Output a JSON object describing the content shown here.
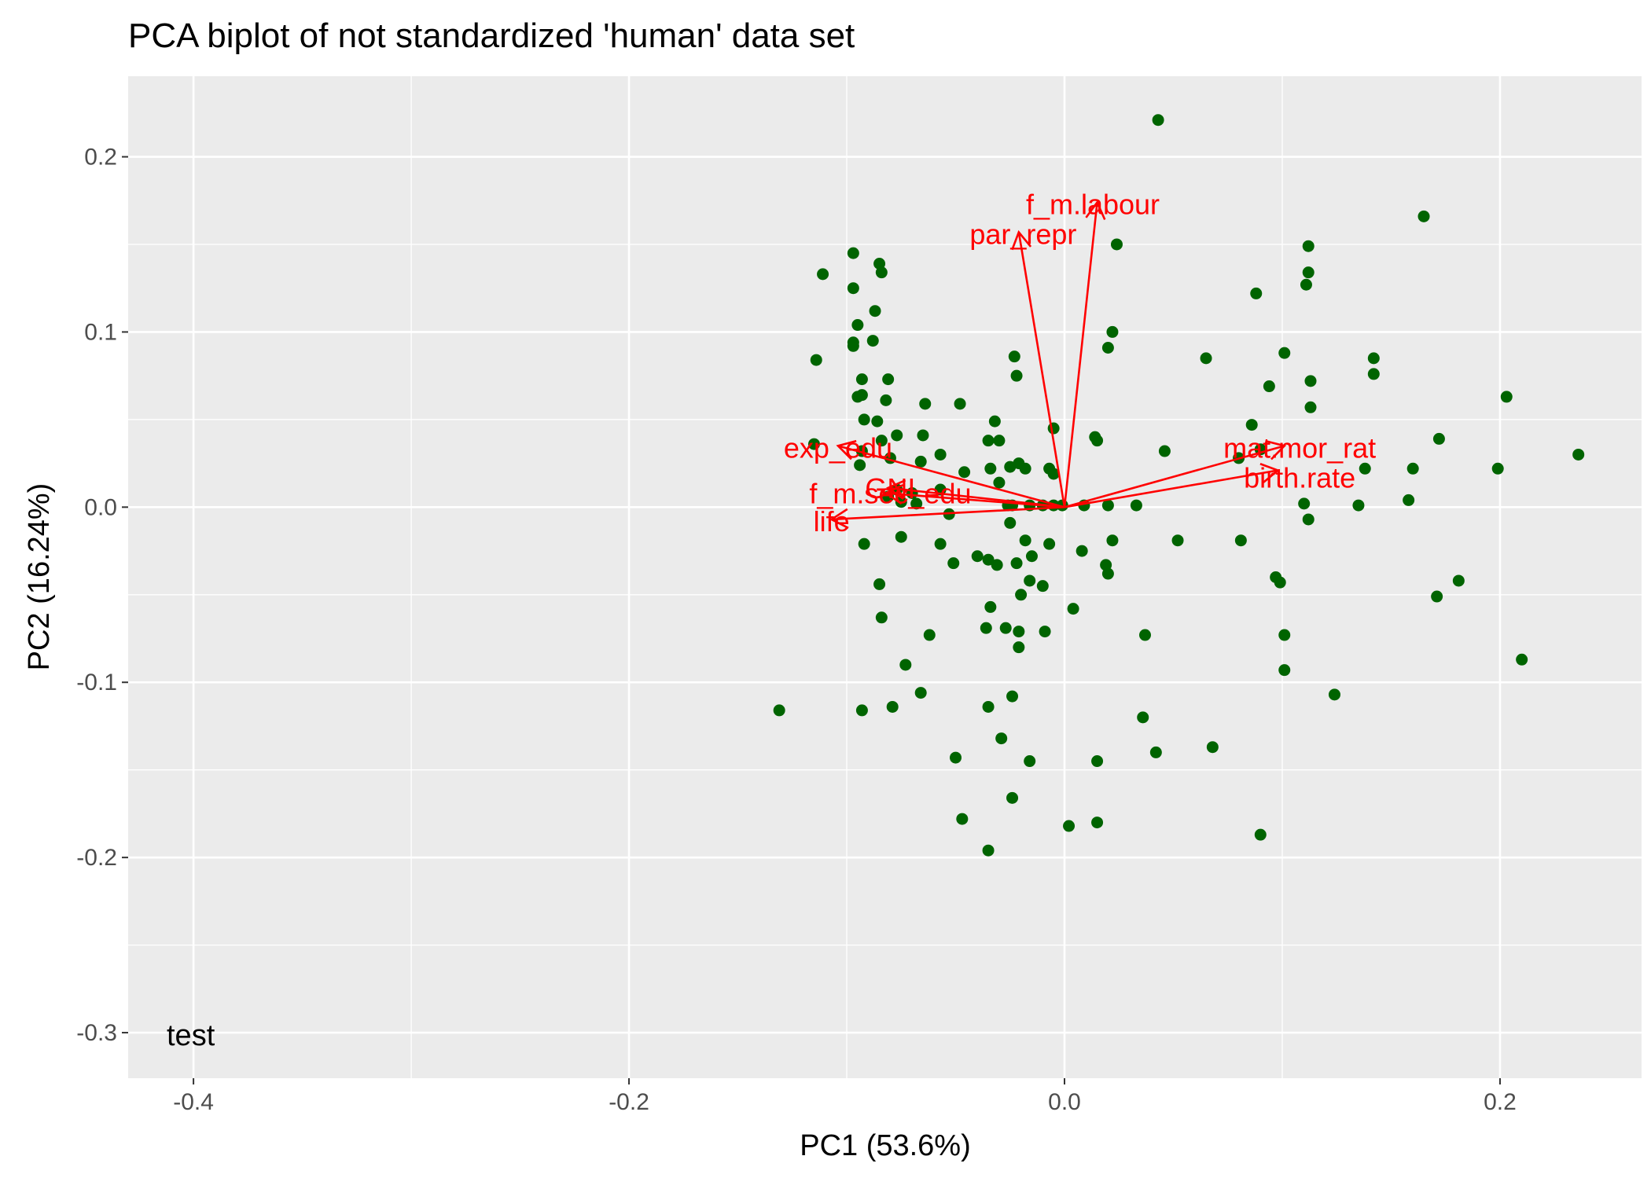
{
  "chart_data": {
    "type": "scatter",
    "title": "PCA biplot of not standardized 'human' data set",
    "xlabel": "PC1 (53.6%)",
    "ylabel": "PC2 (16.24%)",
    "xlim": [
      -0.43,
      0.265
    ],
    "ylim": [
      -0.326,
      0.246
    ],
    "x_ticks": [
      -0.4,
      -0.2,
      0.0,
      0.2
    ],
    "x_tick_labels": [
      "-0.4",
      "-0.2",
      "0.0",
      "0.2"
    ],
    "y_ticks": [
      -0.3,
      -0.2,
      -0.1,
      0.0,
      0.1,
      0.2
    ],
    "y_tick_labels": [
      "-0.3",
      "-0.2",
      "-0.1",
      "0.0",
      "0.1",
      "0.2"
    ],
    "grid": true,
    "point_color": "#006400",
    "arrow_color": "#ff0000",
    "panel_color": "#ebebeb",
    "annotation": "test",
    "points": [
      [
        0.043,
        0.221
      ],
      [
        0.165,
        0.166
      ],
      [
        0.112,
        0.149
      ],
      [
        0.024,
        0.15
      ],
      [
        -0.097,
        0.145
      ],
      [
        -0.085,
        0.139
      ],
      [
        -0.111,
        0.133
      ],
      [
        -0.084,
        0.134
      ],
      [
        0.112,
        0.134
      ],
      [
        0.111,
        0.127
      ],
      [
        -0.097,
        0.125
      ],
      [
        0.088,
        0.122
      ],
      [
        -0.087,
        0.112
      ],
      [
        -0.095,
        0.104
      ],
      [
        0.022,
        0.1
      ],
      [
        -0.097,
        0.094
      ],
      [
        -0.088,
        0.095
      ],
      [
        -0.097,
        0.092
      ],
      [
        0.02,
        0.091
      ],
      [
        0.101,
        0.088
      ],
      [
        -0.023,
        0.086
      ],
      [
        0.065,
        0.085
      ],
      [
        -0.114,
        0.084
      ],
      [
        0.142,
        0.085
      ],
      [
        0.142,
        0.076
      ],
      [
        -0.093,
        0.073
      ],
      [
        -0.081,
        0.073
      ],
      [
        -0.022,
        0.075
      ],
      [
        0.113,
        0.072
      ],
      [
        0.094,
        0.069
      ],
      [
        -0.093,
        0.064
      ],
      [
        -0.095,
        0.063
      ],
      [
        -0.048,
        0.059
      ],
      [
        -0.082,
        0.061
      ],
      [
        -0.064,
        0.059
      ],
      [
        0.113,
        0.057
      ],
      [
        0.203,
        0.063
      ],
      [
        -0.092,
        0.05
      ],
      [
        -0.086,
        0.049
      ],
      [
        -0.032,
        0.049
      ],
      [
        0.086,
        0.047
      ],
      [
        -0.005,
        0.045
      ],
      [
        -0.077,
        0.041
      ],
      [
        -0.065,
        0.041
      ],
      [
        -0.035,
        0.038
      ],
      [
        -0.03,
        0.038
      ],
      [
        0.014,
        0.04
      ],
      [
        0.015,
        0.038
      ],
      [
        0.172,
        0.039
      ],
      [
        -0.084,
        0.038
      ],
      [
        -0.093,
        0.032
      ],
      [
        -0.115,
        0.036
      ],
      [
        -0.057,
        0.03
      ],
      [
        0.046,
        0.032
      ],
      [
        0.09,
        0.033
      ],
      [
        0.08,
        0.028
      ],
      [
        -0.08,
        0.028
      ],
      [
        -0.094,
        0.024
      ],
      [
        -0.066,
        0.026
      ],
      [
        -0.046,
        0.02
      ],
      [
        -0.034,
        0.022
      ],
      [
        -0.025,
        0.023
      ],
      [
        -0.021,
        0.025
      ],
      [
        -0.018,
        0.022
      ],
      [
        -0.007,
        0.022
      ],
      [
        -0.005,
        0.019
      ],
      [
        0.16,
        0.022
      ],
      [
        0.199,
        0.022
      ],
      [
        0.236,
        0.03
      ],
      [
        0.138,
        0.022
      ],
      [
        -0.03,
        0.014
      ],
      [
        -0.057,
        0.01
      ],
      [
        -0.077,
        0.01
      ],
      [
        -0.081,
        0.006
      ],
      [
        -0.07,
        0.008
      ],
      [
        -0.075,
        0.003
      ],
      [
        -0.068,
        0.002
      ],
      [
        -0.026,
        0.001
      ],
      [
        -0.024,
        0.001
      ],
      [
        -0.016,
        0.001
      ],
      [
        -0.01,
        0.001
      ],
      [
        -0.005,
        0.001
      ],
      [
        -0.001,
        0.001
      ],
      [
        0.009,
        0.001
      ],
      [
        0.02,
        0.001
      ],
      [
        0.033,
        0.001
      ],
      [
        0.11,
        0.002
      ],
      [
        0.135,
        0.001
      ],
      [
        0.158,
        0.004
      ],
      [
        -0.053,
        -0.004
      ],
      [
        -0.025,
        -0.009
      ],
      [
        -0.075,
        -0.017
      ],
      [
        -0.092,
        -0.021
      ],
      [
        -0.057,
        -0.021
      ],
      [
        -0.018,
        -0.019
      ],
      [
        -0.007,
        -0.021
      ],
      [
        0.022,
        -0.019
      ],
      [
        0.052,
        -0.019
      ],
      [
        0.081,
        -0.019
      ],
      [
        0.112,
        -0.007
      ],
      [
        -0.04,
        -0.028
      ],
      [
        -0.035,
        -0.03
      ],
      [
        -0.051,
        -0.032
      ],
      [
        -0.031,
        -0.033
      ],
      [
        -0.022,
        -0.032
      ],
      [
        -0.015,
        -0.028
      ],
      [
        0.008,
        -0.025
      ],
      [
        0.019,
        -0.033
      ],
      [
        0.02,
        -0.038
      ],
      [
        0.097,
        -0.04
      ],
      [
        0.099,
        -0.043
      ],
      [
        -0.085,
        -0.044
      ],
      [
        -0.016,
        -0.042
      ],
      [
        -0.02,
        -0.05
      ],
      [
        -0.01,
        -0.045
      ],
      [
        0.181,
        -0.042
      ],
      [
        0.171,
        -0.051
      ],
      [
        -0.034,
        -0.057
      ],
      [
        0.004,
        -0.058
      ],
      [
        -0.084,
        -0.063
      ],
      [
        -0.036,
        -0.069
      ],
      [
        -0.027,
        -0.069
      ],
      [
        -0.021,
        -0.071
      ],
      [
        -0.009,
        -0.071
      ],
      [
        -0.062,
        -0.073
      ],
      [
        0.037,
        -0.073
      ],
      [
        0.101,
        -0.073
      ],
      [
        -0.021,
        -0.08
      ],
      [
        -0.073,
        -0.09
      ],
      [
        0.101,
        -0.093
      ],
      [
        0.21,
        -0.087
      ],
      [
        -0.066,
        -0.106
      ],
      [
        -0.024,
        -0.108
      ],
      [
        0.124,
        -0.107
      ],
      [
        -0.131,
        -0.116
      ],
      [
        -0.093,
        -0.116
      ],
      [
        -0.079,
        -0.114
      ],
      [
        -0.035,
        -0.114
      ],
      [
        0.036,
        -0.12
      ],
      [
        -0.029,
        -0.132
      ],
      [
        0.042,
        -0.14
      ],
      [
        0.068,
        -0.137
      ],
      [
        -0.05,
        -0.143
      ],
      [
        -0.016,
        -0.145
      ],
      [
        0.015,
        -0.145
      ],
      [
        -0.024,
        -0.166
      ],
      [
        -0.047,
        -0.178
      ],
      [
        0.002,
        -0.182
      ],
      [
        0.015,
        -0.18
      ],
      [
        0.09,
        -0.187
      ],
      [
        -0.035,
        -0.196
      ]
    ],
    "loadings": [
      {
        "label": "f_m.labour",
        "x": 0.015,
        "y": 0.174,
        "label_x": 0.013,
        "label_y": 0.173
      },
      {
        "label": "par_repr",
        "x": -0.021,
        "y": 0.157,
        "label_x": -0.019,
        "label_y": 0.156
      },
      {
        "label": "mat.mor_rat",
        "x": 0.101,
        "y": 0.035,
        "label_x": 0.108,
        "label_y": 0.034
      },
      {
        "label": "birth.rate",
        "x": 0.098,
        "y": 0.021,
        "label_x": 0.108,
        "label_y": 0.017
      },
      {
        "label": "exp_edu",
        "x": -0.104,
        "y": 0.035,
        "label_x": -0.104,
        "label_y": 0.034
      },
      {
        "label": "GNI",
        "x": -0.081,
        "y": 0.011,
        "label_x": -0.08,
        "label_y": 0.011
      },
      {
        "label": "f_m.sec_edu",
        "x": -0.082,
        "y": 0.008,
        "label_x": -0.08,
        "label_y": 0.008
      },
      {
        "label": "life",
        "x": -0.107,
        "y": -0.007,
        "label_x": -0.107,
        "label_y": -0.008
      }
    ]
  }
}
